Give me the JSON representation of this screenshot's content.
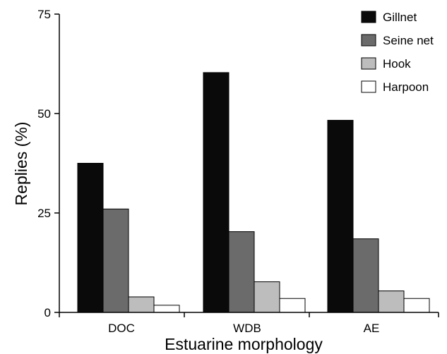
{
  "chart_data": {
    "type": "bar",
    "title": "",
    "xlabel": "Estuarine morphology",
    "ylabel": "Replies (%)",
    "categories": [
      "DOC",
      "WDB",
      "AE"
    ],
    "ylim": [
      0,
      75
    ],
    "yticks": [
      0,
      25,
      50,
      75
    ],
    "grid": false,
    "legend_position": "top-right",
    "series": [
      {
        "name": "Gillnet",
        "color": "#0a0a0a",
        "values": [
          37.5,
          60.3,
          48.3
        ]
      },
      {
        "name": "Seine net",
        "color": "#6b6b6b",
        "values": [
          26.0,
          20.3,
          18.5
        ]
      },
      {
        "name": "Hook",
        "color": "#bdbdbd",
        "values": [
          3.9,
          7.7,
          5.4
        ]
      },
      {
        "name": "Harpoon",
        "color": "#ffffff",
        "values": [
          1.8,
          3.5,
          3.5
        ]
      }
    ]
  }
}
